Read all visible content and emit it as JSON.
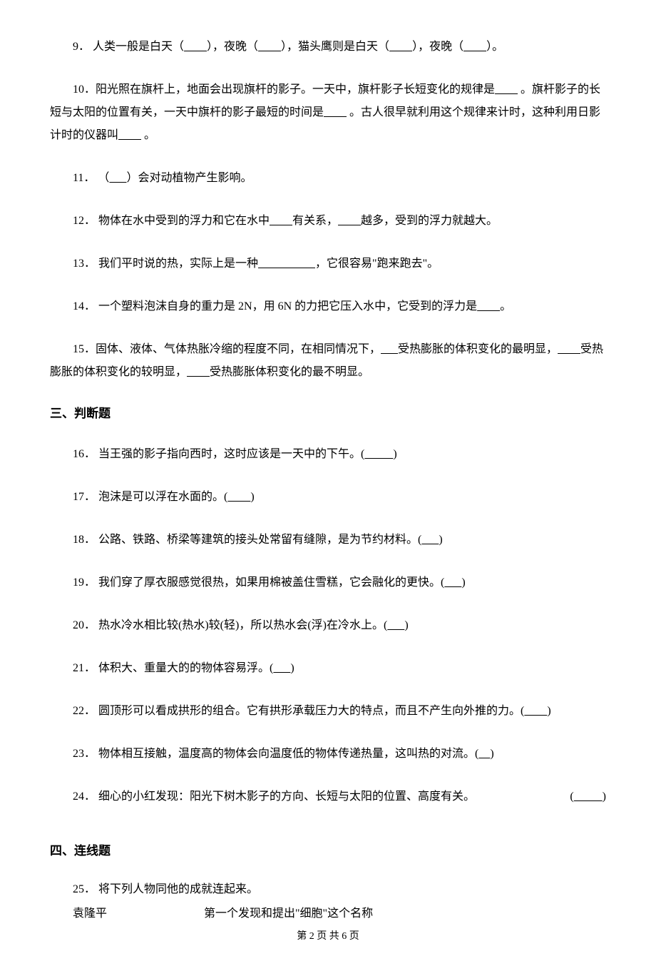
{
  "questions": {
    "q9": {
      "num": "9．",
      "t1": "人类一般是白天（",
      "b1": "        ",
      "t2": "），夜晚（",
      "b2": "        ",
      "t3": "），猫头鹰则是白天（",
      "b3": "        ",
      "t4": "），夜晚（",
      "b4": "        ",
      "t5": "）。"
    },
    "q10": {
      "num": "10．",
      "t1": "阳光照在旗杆上，地面会出现旗杆的影子。一天中，旗杆影子长短变化的规律是",
      "b1": "        ",
      "t2": " 。旗杆影子的长短与太阳的位置有关，一天中旗杆的影子最短的时间是",
      "b2": "        ",
      "t3": " 。古人很早就利用这个规律来计时，这种利用日影计时的仪器叫",
      "b3": "        ",
      "t4": " 。"
    },
    "q11": {
      "num": "11．",
      "t1": "（",
      "b1": "      ",
      "t2": "）会对动植物产生影响。"
    },
    "q12": {
      "num": "12．",
      "t1": "物体在水中受到的浮力和它在水中",
      "b1": "        ",
      "t2": "有关系，",
      "b2": "        ",
      "t3": "越多，受到的浮力就越大。"
    },
    "q13": {
      "num": "13．",
      "t1": "我们平时说的热，实际上是一种",
      "b1": "                    ",
      "t2": "，它很容易\"跑来跑去\"。"
    },
    "q14": {
      "num": "14．",
      "t1": "一个塑料泡沫自身的重力是 2N，用 6N 的力把它压入水中，它受到的浮力是",
      "b1": "        ",
      "t2": "。"
    },
    "q15": {
      "num": "15．",
      "t1": "固体、液体、气体热胀冷缩的程度不同，在相同情况下，",
      "b1": "      ",
      "t2": "受热膨胀的体积变化的最明显，",
      "b2": "        ",
      "t3": "受热膨胀的体积变化的较明显，",
      "b3": "        ",
      "t4": "受热膨胀体积变化的最不明显。"
    }
  },
  "section3": "三、判断题",
  "tf": {
    "q16": {
      "num": "16．",
      "text": "当王强的影子指向西时，这时应该是一天中的下午。(",
      "b": "          ",
      "close": ")"
    },
    "q17": {
      "num": "17．",
      "text": "泡沫是可以浮在水面的。(",
      "b": "        ",
      "close": ")"
    },
    "q18": {
      "num": "18．",
      "text": "公路、铁路、桥梁等建筑的接头处常留有缝隙，是为节约材料。(",
      "b": "      ",
      "close": ")"
    },
    "q19": {
      "num": "19．",
      "text": "我们穿了厚衣服感觉很热，如果用棉被盖住雪糕，它会融化的更快。(",
      "b": "      ",
      "close": ")"
    },
    "q20": {
      "num": "20．",
      "text": "热水冷水相比较(热水)较(轻)，所以热水会(浮)在冷水上。(",
      "b": "      ",
      "close": ")"
    },
    "q21": {
      "num": "21．",
      "text": "体积大、重量大的的物体容易浮。(",
      "b": "      ",
      "close": ")"
    },
    "q22": {
      "num": "22．",
      "text": "圆顶形可以看成拱形的组合。它有拱形承载压力大的特点，而且不产生向外推的力。(",
      "b": "        ",
      "close": ")"
    },
    "q23": {
      "num": "23．",
      "text": "物体相互接触，温度高的物体会向温度低的物体传递热量，这叫热的对流。(",
      "b": "    ",
      "close": ")"
    },
    "q24": {
      "num": "24．",
      "text": "细心的小红发现：阳光下树木影子的方向、长短与太阳的位置、高度有关。",
      "right_open": "(",
      "b": "          ",
      "right_close": ")"
    }
  },
  "section4": "四、连线题",
  "matching": {
    "q25": {
      "num": "25．",
      "text": "将下列人物同他的成就连起来。"
    },
    "row1": {
      "left": "袁隆平",
      "right": "第一个发现和提出\"细胞\"这个名称"
    }
  },
  "footer": {
    "t1": "第 ",
    "cur": "2",
    "t2": " 页 共 ",
    "total": "6",
    "t3": " 页"
  }
}
